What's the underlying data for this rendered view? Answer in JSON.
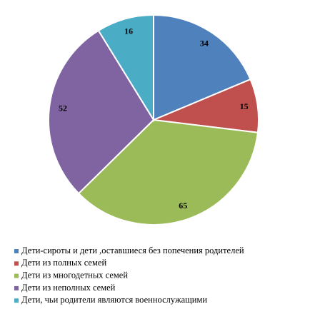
{
  "chart_data": {
    "type": "pie",
    "categories": [
      "Дети-сироты и дети ,оставшиеся без попечения родителей",
      "Дети из полных семей",
      "Дети из многодетных семей",
      "Дети из неполных семей",
      "Дети, чьи родители являются военнослужащими"
    ],
    "values": [
      34,
      15,
      65,
      52,
      16
    ],
    "colors": [
      "#4f81bd",
      "#c0504d",
      "#9bbb59",
      "#8064a2",
      "#4bacc6"
    ],
    "legend": "bottom"
  }
}
